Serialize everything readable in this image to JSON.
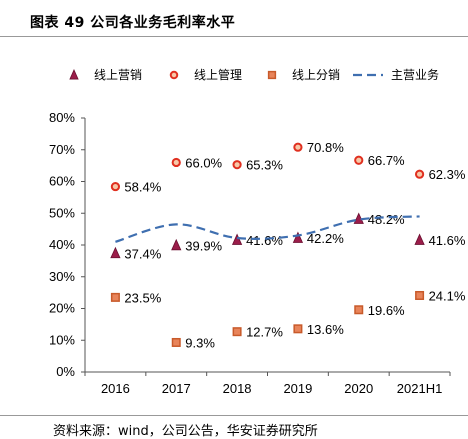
{
  "figure": {
    "title": "图表 49  公司各业务毛利率水平",
    "source": "资料来源：wind，公司公告，华安证券研究所"
  },
  "chart_data": {
    "type": "line",
    "categories": [
      "2016",
      "2017",
      "2018",
      "2019",
      "2020",
      "2021H1"
    ],
    "ylim": [
      0,
      80
    ],
    "yticks": [
      "0%",
      "10%",
      "20%",
      "30%",
      "40%",
      "50%",
      "60%",
      "70%",
      "80%"
    ],
    "legend_position": "top",
    "grid": false,
    "series": [
      {
        "name": "线上营销",
        "marker": "triangle",
        "color": "#9b1d4a",
        "values": [
          37.4,
          39.9,
          41.6,
          42.2,
          48.2,
          41.6
        ],
        "labels": [
          "37.4%",
          "39.9%",
          "41.6%",
          "42.2%",
          "48.2%",
          "41.6%"
        ]
      },
      {
        "name": "线上管理",
        "marker": "circle",
        "color": "#e03020",
        "values": [
          58.4,
          66.0,
          65.3,
          70.8,
          66.7,
          62.3
        ],
        "labels": [
          "58.4%",
          "66.0%",
          "65.3%",
          "70.8%",
          "66.7%",
          "62.3%"
        ]
      },
      {
        "name": "线上分销",
        "marker": "square",
        "color": "#e8845a",
        "values": [
          23.5,
          9.3,
          12.7,
          13.6,
          19.6,
          24.1
        ],
        "labels": [
          "23.5%",
          "9.3%",
          "12.7%",
          "13.6%",
          "19.6%",
          "24.1%"
        ]
      },
      {
        "name": "主营业务",
        "marker": "dashed-line",
        "color": "#3f6fb0",
        "values": [
          41.0,
          46.5,
          42.2,
          43.0,
          48.0,
          49.0
        ]
      }
    ]
  }
}
